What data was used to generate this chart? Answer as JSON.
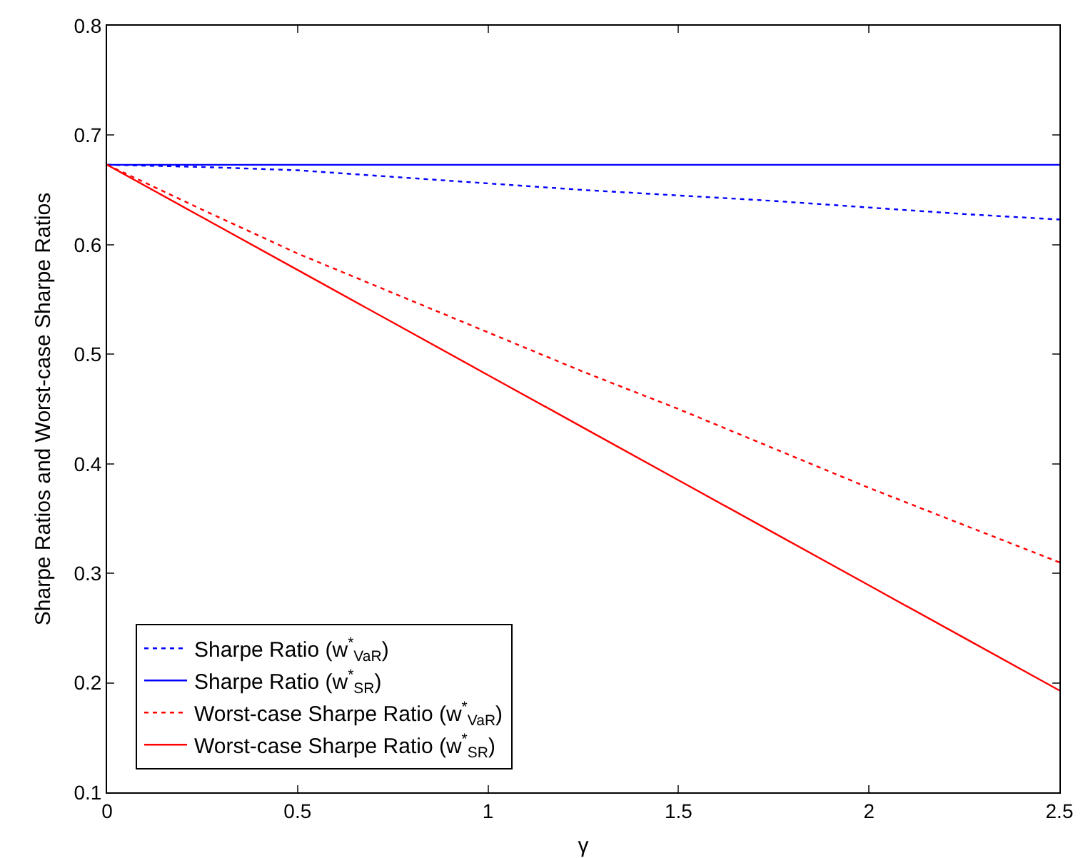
{
  "chart_data": {
    "type": "line",
    "xlabel": "γ",
    "ylabel": "Sharpe Ratios and Worst-case Sharpe Ratios",
    "x": [
      0,
      0.25,
      0.5,
      0.75,
      1,
      1.25,
      1.5,
      1.75,
      2,
      2.25,
      2.5
    ],
    "series": [
      {
        "name": "Sharpe Ratio (w$^{*}$$_{VaR}$)",
        "color": "#0000ff",
        "line_style": "dotted",
        "values": [
          0.673,
          0.671,
          0.668,
          0.662,
          0.656,
          0.65,
          0.645,
          0.64,
          0.634,
          0.628,
          0.623
        ]
      },
      {
        "name": "Sharpe Ratio (w$^{*}$$_{SR}$)",
        "color": "#0000ff",
        "line_style": "solid",
        "values": [
          0.673,
          0.673,
          0.673,
          0.673,
          0.673,
          0.673,
          0.673,
          0.673,
          0.673,
          0.673,
          0.673
        ]
      },
      {
        "name": "Worst-case Sharpe Ratio (w$^{*}$$_{VaR}$)",
        "color": "#ff0000",
        "line_style": "dotted",
        "values": [
          0.673,
          0.632,
          0.592,
          0.556,
          0.52,
          0.484,
          0.45,
          0.414,
          0.378,
          0.344,
          0.31
        ]
      },
      {
        "name": "Worst-case Sharpe Ratio (w$^{*}$$_{SR}$)",
        "color": "#ff0000",
        "line_style": "solid",
        "values": [
          0.673,
          0.625,
          0.577,
          0.529,
          0.481,
          0.433,
          0.385,
          0.337,
          0.289,
          0.241,
          0.193
        ]
      }
    ],
    "xlim": [
      0,
      2.5
    ],
    "xticks": [
      0,
      0.5,
      1,
      1.5,
      2,
      2.5
    ],
    "ylim": [
      0.1,
      0.8
    ],
    "yticks": [
      0.1,
      0.2,
      0.3,
      0.4,
      0.5,
      0.6,
      0.7,
      0.8
    ],
    "grid": false,
    "legend": "bottom left",
    "marker": "none"
  }
}
